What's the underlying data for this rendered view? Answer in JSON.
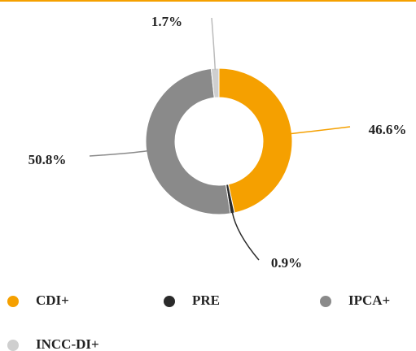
{
  "chart_data": {
    "type": "donut",
    "categories": [
      "CDI+",
      "PRE",
      "IPCA+",
      "INCC-DI+"
    ],
    "values": [
      46.6,
      0.9,
      50.8,
      1.7
    ],
    "value_labels": [
      "46.6%",
      "0.9%",
      "50.8%",
      "1.7%"
    ],
    "colors": [
      "#f5a000",
      "#2a2a2a",
      "#8a8a8a",
      "#cfcfcf"
    ]
  }
}
